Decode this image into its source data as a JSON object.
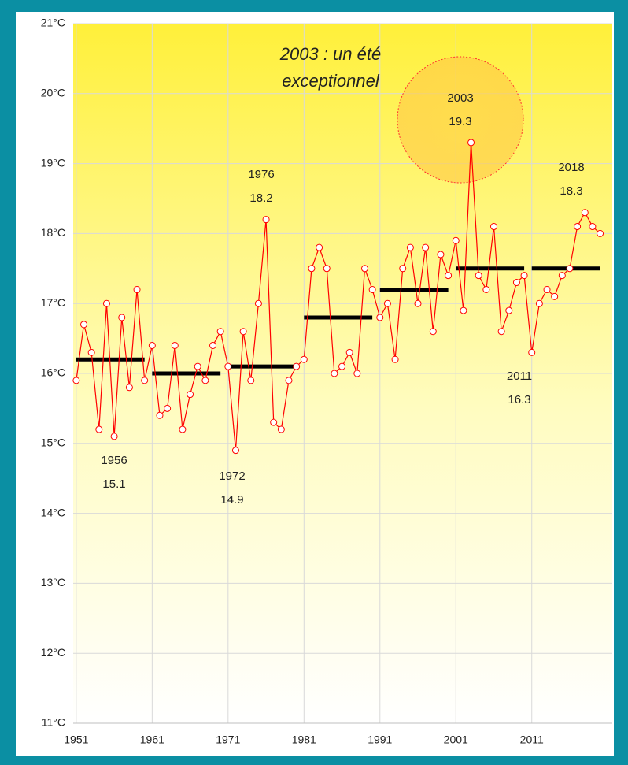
{
  "chart_data": {
    "type": "line",
    "x": [
      1951,
      1952,
      1953,
      1954,
      1955,
      1956,
      1957,
      1958,
      1959,
      1960,
      1961,
      1962,
      1963,
      1964,
      1965,
      1966,
      1967,
      1968,
      1969,
      1970,
      1971,
      1972,
      1973,
      1974,
      1975,
      1976,
      1977,
      1978,
      1979,
      1980,
      1981,
      1982,
      1983,
      1984,
      1985,
      1986,
      1987,
      1988,
      1989,
      1990,
      1991,
      1992,
      1993,
      1994,
      1995,
      1996,
      1997,
      1998,
      1999,
      2000,
      2001,
      2002,
      2003,
      2004,
      2005,
      2006,
      2007,
      2008,
      2009,
      2010,
      2011,
      2012,
      2013,
      2014,
      2015,
      2016,
      2017,
      2018,
      2019,
      2020
    ],
    "series": [
      {
        "color": "#ff0000",
        "values": [
          15.9,
          16.7,
          16.3,
          15.2,
          17.0,
          15.1,
          16.8,
          15.8,
          17.2,
          15.9,
          16.4,
          15.4,
          15.5,
          16.4,
          15.2,
          15.7,
          16.1,
          15.9,
          16.4,
          16.6,
          16.1,
          14.9,
          16.6,
          15.9,
          17.0,
          18.2,
          15.3,
          15.2,
          15.9,
          16.1,
          16.2,
          17.5,
          17.8,
          17.5,
          16.0,
          16.1,
          16.3,
          16.0,
          17.5,
          17.2,
          16.8,
          17.0,
          16.2,
          17.5,
          17.8,
          17.0,
          17.8,
          16.6,
          17.7,
          17.4,
          17.9,
          16.9,
          19.3,
          17.4,
          17.2,
          18.1,
          16.6,
          16.9,
          17.3,
          17.4,
          16.3,
          17.0,
          17.2,
          17.1,
          17.4,
          17.5,
          18.1,
          18.3,
          18.1,
          18.0
        ]
      }
    ],
    "decade_means": {
      "color": "#000000",
      "x_start": [
        1951,
        1961,
        1971,
        1981,
        1991,
        2001,
        2011
      ],
      "x_end": [
        1960,
        1970,
        1980,
        1990,
        2000,
        2010,
        2020
      ],
      "values": [
        16.2,
        16.0,
        16.1,
        16.8,
        17.2,
        17.5,
        17.5
      ]
    },
    "xlim": [
      1950.6,
      2021.6
    ],
    "xticks": [
      1951,
      1961,
      1971,
      1981,
      1991,
      2001,
      2011
    ],
    "ylim": [
      11,
      21
    ],
    "yticks": [
      {
        "value": 11,
        "label": "11°C"
      },
      {
        "value": 12,
        "label": "12°C"
      },
      {
        "value": 13,
        "label": "13°C"
      },
      {
        "value": 14,
        "label": "14°C"
      },
      {
        "value": 15,
        "label": "15°C"
      },
      {
        "value": 16,
        "label": "16°C"
      },
      {
        "value": 17,
        "label": "17°C"
      },
      {
        "value": 18,
        "label": "18°C"
      },
      {
        "value": 19,
        "label": "19°C"
      },
      {
        "value": 20,
        "label": "20°C"
      },
      {
        "value": 21,
        "label": "21°C"
      }
    ],
    "grid": true,
    "title": [
      "2003 : un été",
      "exceptionnel"
    ],
    "annotations": [
      {
        "year": "1956",
        "value": "15.1"
      },
      {
        "year": "1972",
        "value": "14.9"
      },
      {
        "year": "1976",
        "value": "18.2"
      },
      {
        "year": "2003",
        "value": "19.3"
      },
      {
        "year": "2011",
        "value": "16.3"
      },
      {
        "year": "2018",
        "value": "18.3"
      }
    ]
  }
}
